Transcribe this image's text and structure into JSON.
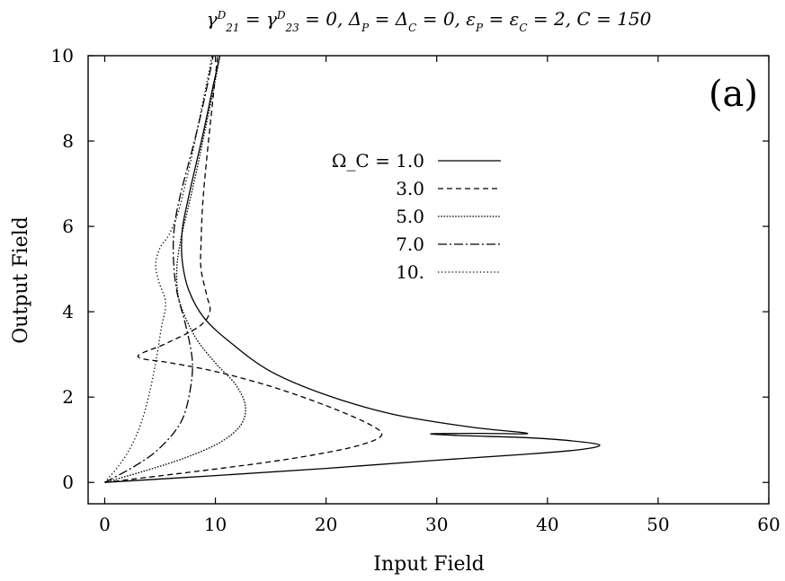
{
  "chart_data": {
    "type": "line",
    "title": "γ^D_21 = γ^D_23 = 0, Δ_P = Δ_C = 0, ε_P = ε_C = 2, C = 150",
    "panel_label": "(a)",
    "xlabel": "Input Field",
    "ylabel": "Output Field",
    "xlim": [
      -1.5,
      60
    ],
    "ylim": [
      -0.5,
      10
    ],
    "xticks": [
      0,
      10,
      20,
      30,
      40,
      50,
      60
    ],
    "yticks": [
      0,
      2,
      4,
      6,
      8,
      10
    ],
    "grid": false,
    "legend_position": "upper-middle",
    "series": [
      {
        "name": "Ω_C = 1.0",
        "dash": "solid",
        "points": [
          [
            0,
            0
          ],
          [
            10,
            0.16
          ],
          [
            20,
            0.33
          ],
          [
            30,
            0.52
          ],
          [
            38,
            0.66
          ],
          [
            43,
            0.77
          ],
          [
            44.7,
            0.88
          ],
          [
            42,
            0.98
          ],
          [
            38,
            1.05
          ],
          [
            32,
            1.1
          ],
          [
            29.5,
            1.14
          ],
          [
            34,
            1.15
          ],
          [
            38.2,
            1.15
          ],
          [
            33,
            1.3
          ],
          [
            26,
            1.6
          ],
          [
            20,
            2.05
          ],
          [
            15,
            2.6
          ],
          [
            11.5,
            3.25
          ],
          [
            9,
            3.85
          ],
          [
            7.6,
            4.5
          ],
          [
            7,
            5.2
          ],
          [
            7,
            5.9
          ],
          [
            7.5,
            6.6
          ],
          [
            8.2,
            7.4
          ],
          [
            9,
            8.3
          ],
          [
            9.8,
            9.3
          ],
          [
            10.4,
            10
          ]
        ]
      },
      {
        "name": "3.0",
        "dash": "dashed",
        "points": [
          [
            0,
            0
          ],
          [
            8,
            0.25
          ],
          [
            14,
            0.45
          ],
          [
            19,
            0.65
          ],
          [
            23,
            0.87
          ],
          [
            25,
            1.1
          ],
          [
            24,
            1.35
          ],
          [
            20,
            1.8
          ],
          [
            15,
            2.25
          ],
          [
            10,
            2.6
          ],
          [
            6,
            2.8
          ],
          [
            3,
            2.95
          ],
          [
            5.5,
            3.25
          ],
          [
            8.5,
            3.65
          ],
          [
            9.5,
            4
          ],
          [
            9.2,
            4.4
          ],
          [
            8.7,
            5
          ],
          [
            8.7,
            5.6
          ],
          [
            8.8,
            6.3
          ],
          [
            9,
            7
          ],
          [
            9.3,
            7.8
          ],
          [
            9.7,
            8.8
          ],
          [
            10.2,
            10
          ]
        ]
      },
      {
        "name": "5.0",
        "dash": "fine-dotted",
        "points": [
          [
            0,
            0
          ],
          [
            4,
            0.3
          ],
          [
            7.5,
            0.6
          ],
          [
            10.5,
            0.95
          ],
          [
            12.3,
            1.35
          ],
          [
            12.7,
            1.8
          ],
          [
            11.8,
            2.3
          ],
          [
            10,
            2.8
          ],
          [
            8.2,
            3.4
          ],
          [
            6.8,
            4.2
          ],
          [
            6.5,
            4.9
          ],
          [
            6.8,
            5.6
          ],
          [
            7.5,
            6.4
          ],
          [
            8.3,
            7.3
          ],
          [
            9.1,
            8.3
          ],
          [
            9.9,
            9.3
          ],
          [
            10.4,
            10
          ]
        ]
      },
      {
        "name": "7.0",
        "dash": "dash-dot",
        "points": [
          [
            0,
            0
          ],
          [
            2.5,
            0.35
          ],
          [
            4.5,
            0.7
          ],
          [
            6.2,
            1.15
          ],
          [
            7.2,
            1.6
          ],
          [
            7.8,
            2.3
          ],
          [
            7.9,
            2.9
          ],
          [
            7.3,
            3.7
          ],
          [
            6.5,
            4.5
          ],
          [
            6.2,
            5.3
          ],
          [
            6.3,
            6
          ],
          [
            6.8,
            6.7
          ],
          [
            7.5,
            7.4
          ],
          [
            8.3,
            8.2
          ],
          [
            9.1,
            9.1
          ],
          [
            9.8,
            10
          ]
        ]
      },
      {
        "name": "10.",
        "dash": "dotted",
        "points": [
          [
            0,
            0
          ],
          [
            1.3,
            0.4
          ],
          [
            2.4,
            0.85
          ],
          [
            3.3,
            1.4
          ],
          [
            4,
            2.05
          ],
          [
            4.6,
            2.8
          ],
          [
            5.1,
            3.6
          ],
          [
            5.5,
            4.2
          ],
          [
            4.9,
            4.7
          ],
          [
            4.6,
            5.1
          ],
          [
            5,
            5.5
          ],
          [
            5.8,
            5.8
          ],
          [
            6.6,
            6.3
          ],
          [
            7.3,
            7
          ],
          [
            8,
            7.8
          ],
          [
            8.7,
            8.7
          ],
          [
            9.4,
            9.6
          ],
          [
            9.7,
            10
          ]
        ]
      }
    ]
  }
}
